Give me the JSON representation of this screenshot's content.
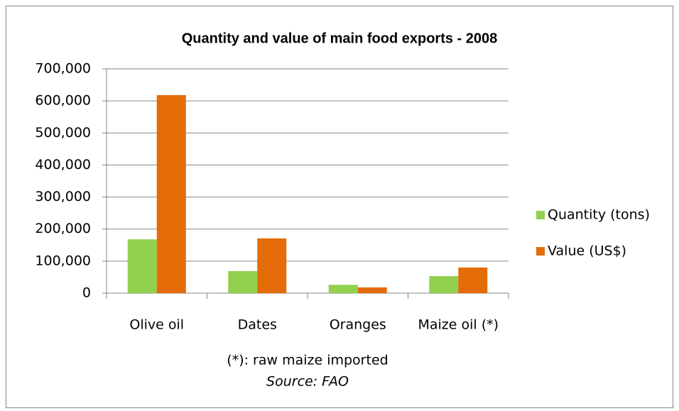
{
  "chart_data": {
    "type": "bar",
    "title": "Quantity and value of main food exports - 2008",
    "categories": [
      "Olive oil",
      "Dates",
      "Oranges",
      "Maize oil (*)"
    ],
    "series": [
      {
        "name": "Quantity (tons)",
        "color": "#92d050",
        "values": [
          168000,
          69000,
          26000,
          53000
        ]
      },
      {
        "name": "Value (US$)",
        "color": "#e36c09",
        "values": [
          618000,
          171000,
          18000,
          80000
        ]
      }
    ],
    "ylim": [
      0,
      700000
    ],
    "yticks": [
      0,
      {
        "value": 100000,
        "label": "100,000"
      },
      {
        "value": 200000,
        "label": "200,000"
      },
      {
        "value": 300000,
        "label": "300,000"
      },
      {
        "value": 400000,
        "label": "400,000"
      },
      {
        "value": 500000,
        "label": "500,000"
      },
      {
        "value": 600000,
        "label": "600,000"
      },
      {
        "value": 700000,
        "label": "700,000"
      }
    ],
    "grid": true,
    "legend": "right",
    "annotations": [
      "(*): raw maize imported",
      "Source: FAO"
    ]
  }
}
